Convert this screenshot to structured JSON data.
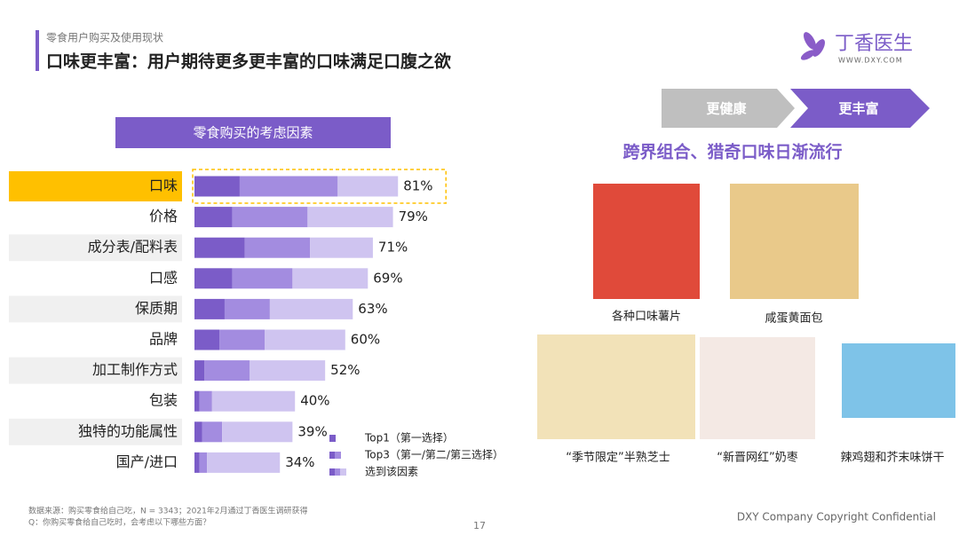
{
  "header": {
    "section": "零食用户购买及使用现状",
    "title": "口味更丰富：用户期待更多更丰富的口味满足口腹之欲",
    "logo": "丁香医生",
    "logo_url": "WWW.DXY.COM"
  },
  "chart_data": {
    "type": "stacked-barh",
    "title": "零食购买的考虑因素",
    "categories": [
      "口味",
      "价格",
      "成分表/配料表",
      "口感",
      "保质期",
      "品牌",
      "加工制作方式",
      "包装",
      "独特的功能属性",
      "国产/进口"
    ],
    "series": [
      {
        "name": "Top1（第一选择）",
        "color": "#7b5cc8",
        "values": [
          18,
          15,
          20,
          15,
          12,
          10,
          4,
          2,
          3,
          2
        ]
      },
      {
        "name": "Top3（第一/第二/第三选择）",
        "color": "#a38ce0",
        "values": [
          39,
          30,
          26,
          24,
          18,
          18,
          18,
          5,
          8,
          3
        ]
      },
      {
        "name": "选到该因素",
        "color": "#cfc4f0",
        "values": [
          24,
          34,
          25,
          30,
          33,
          32,
          30,
          33,
          28,
          29
        ]
      }
    ],
    "totals": [
      81,
      79,
      71,
      69,
      63,
      60,
      52,
      40,
      39,
      34
    ],
    "total_labels": [
      "81%",
      "79%",
      "71%",
      "69%",
      "63%",
      "60%",
      "52%",
      "40%",
      "39%",
      "34%"
    ],
    "highlight_color": "#ffc000"
  },
  "arrows": [
    "更健康",
    "更丰富"
  ],
  "trend": {
    "title": "跨界组合、猎奇口味日渐流行",
    "captions": [
      "各种口味薯片",
      "咸蛋黄面包",
      "“季节限定”半熟芝士",
      "“新晋网红”奶枣",
      "辣鸡翅和芥末味饼干"
    ]
  },
  "footer": {
    "source": "数据来源：购买零食给自己吃，N = 3343；2021年2月通过丁香医生调研获得",
    "question": "Q：你购买零食给自己吃时，会考虑以下哪些方面？",
    "page": "17",
    "copyright": "DXY Company Copyright Confidential"
  }
}
